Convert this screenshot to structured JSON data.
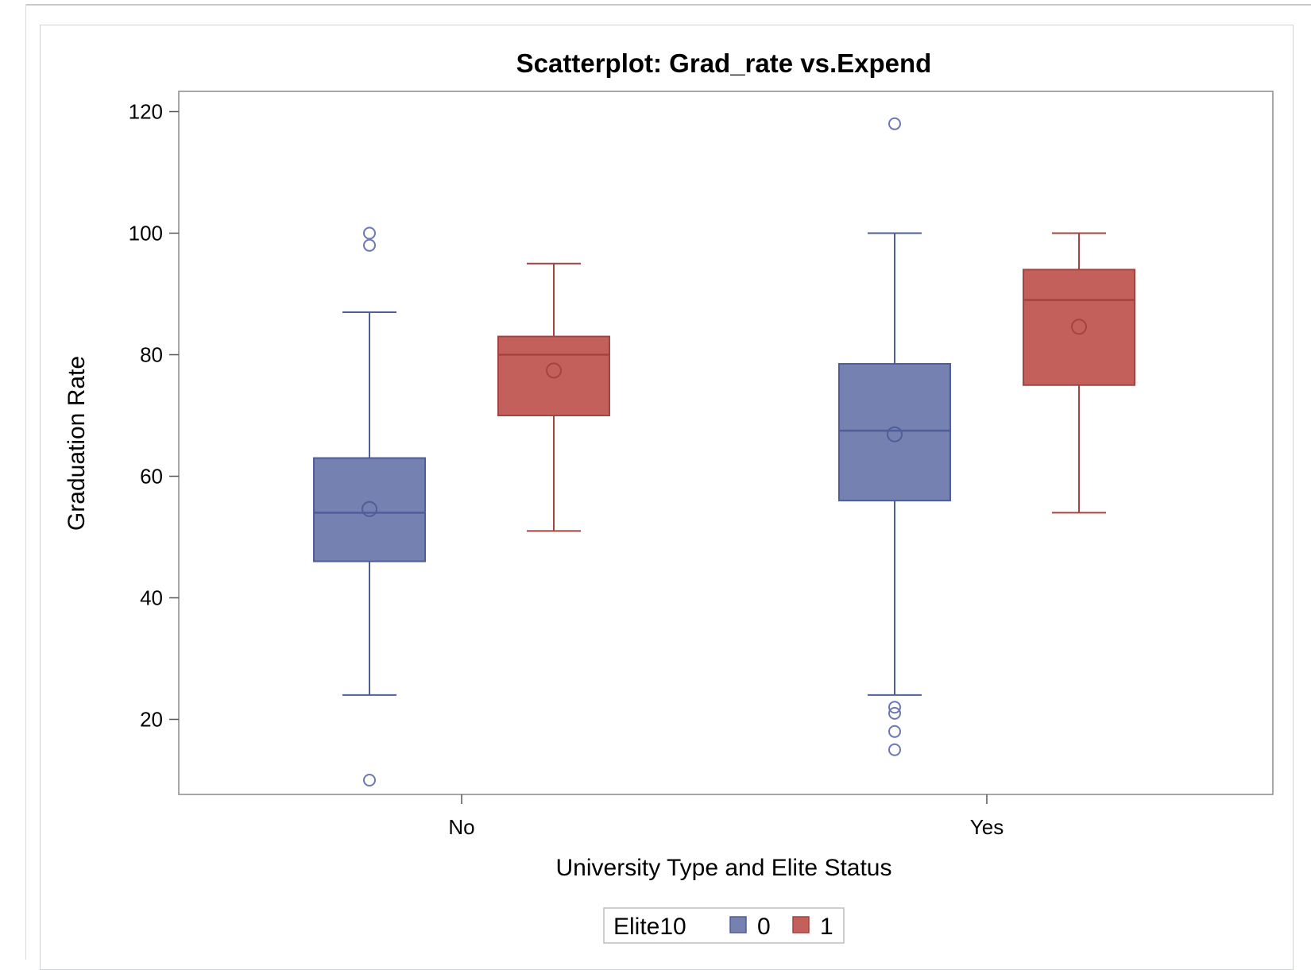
{
  "chart_data": {
    "type": "box",
    "title": "Scatterplot: Grad_rate vs.Expend",
    "xlabel": "University Type and Elite Status",
    "ylabel": "Graduation Rate",
    "categories": [
      "No",
      "Yes"
    ],
    "yticks": [
      20,
      40,
      60,
      80,
      100,
      120
    ],
    "ylim": [
      7,
      123
    ],
    "legend": {
      "title": "Elite10",
      "position": "bottom-center",
      "entries": [
        {
          "label": "0",
          "color": "#7581b0"
        },
        {
          "label": "1",
          "color": "#c3605c"
        }
      ]
    },
    "series": [
      {
        "name": "0",
        "fill": "#7581b0",
        "stroke": "#4f5d99",
        "boxes": [
          {
            "category": "No",
            "whisker_low": 24,
            "q1": 46,
            "median": 54,
            "mean": 54.6,
            "q3": 63,
            "whisker_high": 87,
            "outliers": [
              100,
              98,
              10
            ]
          },
          {
            "category": "Yes",
            "whisker_low": 24,
            "q1": 56,
            "median": 67.5,
            "mean": 66.9,
            "q3": 78.5,
            "whisker_high": 100,
            "outliers": [
              118,
              22,
              21,
              18,
              15
            ]
          }
        ]
      },
      {
        "name": "1",
        "fill": "#c3605c",
        "stroke": "#a4443f",
        "boxes": [
          {
            "category": "No",
            "whisker_low": 51,
            "q1": 70,
            "median": 80,
            "mean": 77.4,
            "q3": 83,
            "whisker_high": 95,
            "outliers": []
          },
          {
            "category": "Yes",
            "whisker_low": 54,
            "q1": 75,
            "median": 89,
            "mean": 84.6,
            "q3": 94,
            "whisker_high": 100,
            "outliers": []
          }
        ]
      }
    ],
    "grid": false
  }
}
